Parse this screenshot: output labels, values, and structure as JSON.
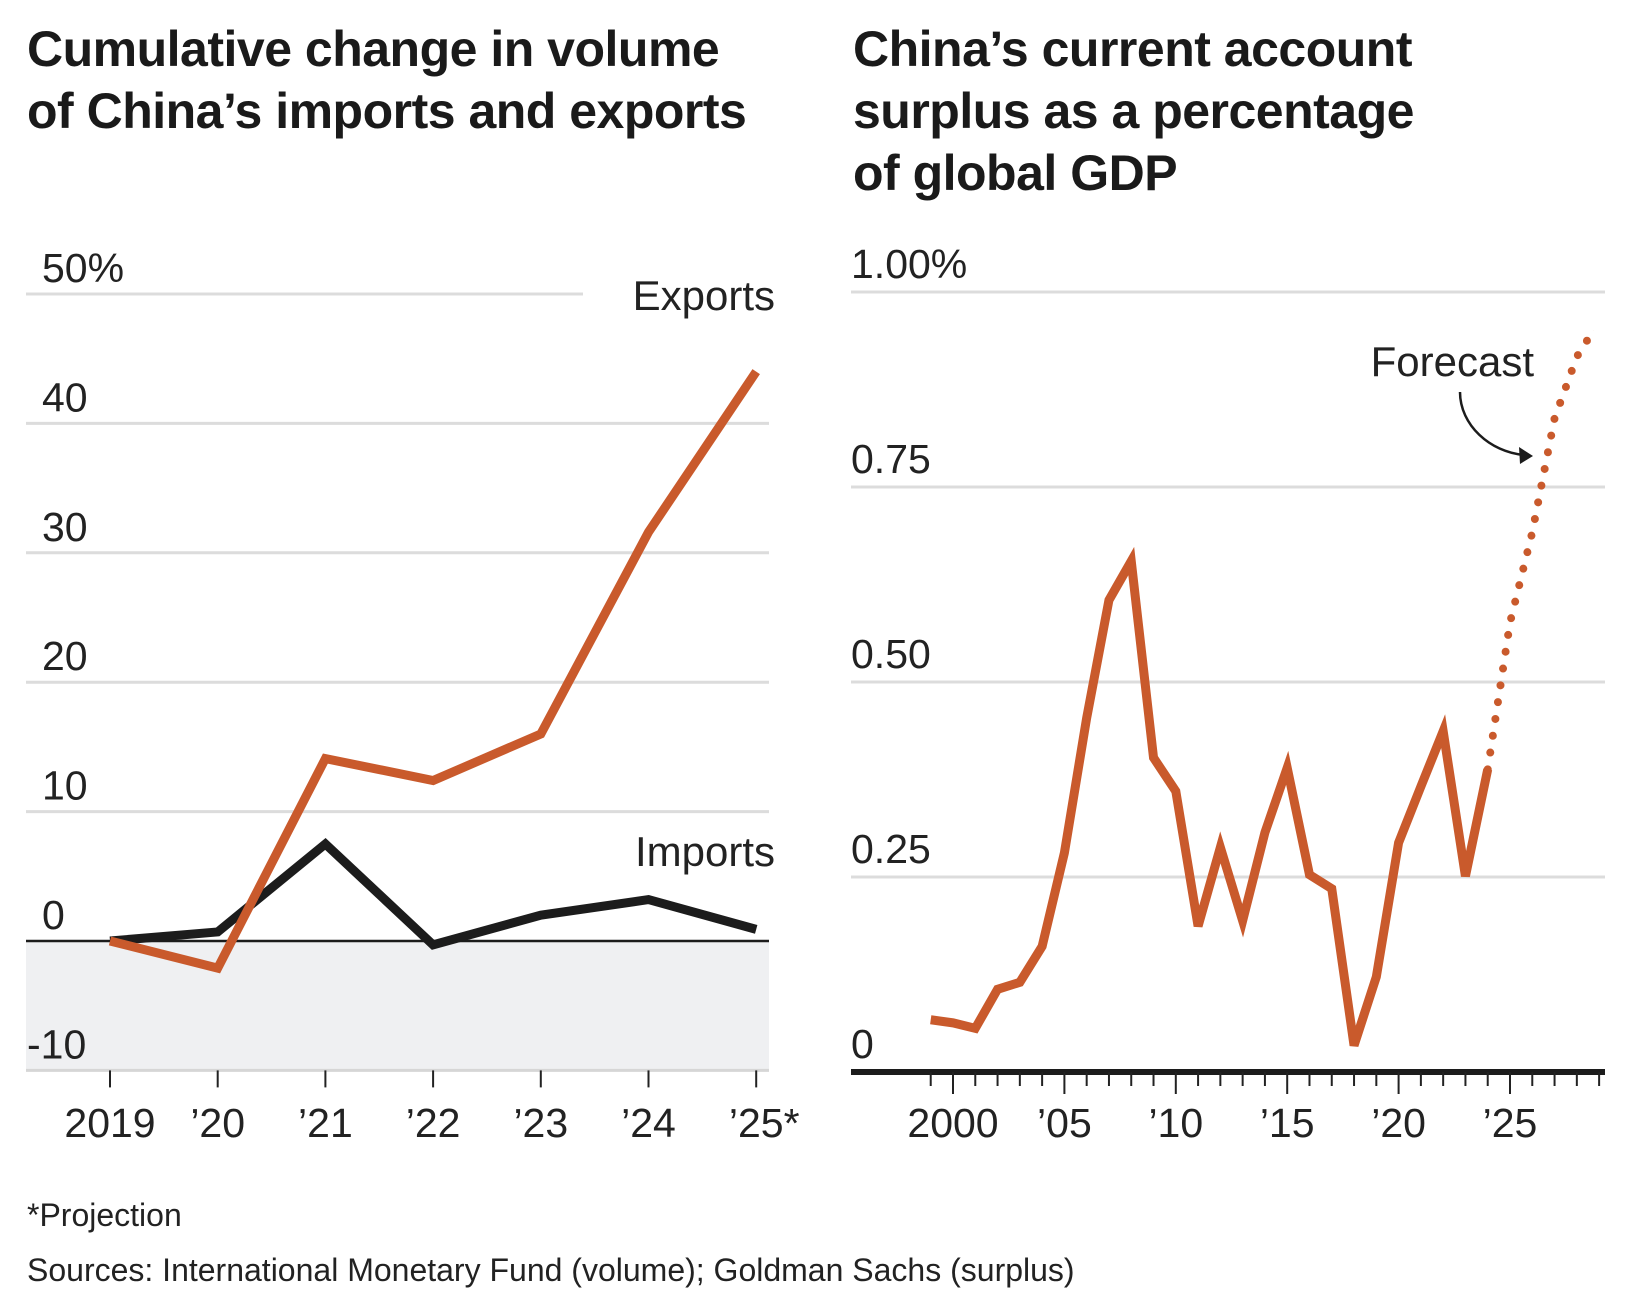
{
  "colors": {
    "exports": "#c95a2c",
    "imports": "#1c1c1c",
    "surplus": "#c95a2c",
    "grid": "#dcdcdc",
    "negative_shade": "#eff0f2"
  },
  "chart_data": [
    {
      "type": "line",
      "title": "Cumulative change in volume of China’s imports and exports",
      "title_lines": [
        "Cumulative change in volume",
        "of China’s imports and exports"
      ],
      "categories": [
        "2019",
        "’20",
        "’21",
        "’22",
        "’23",
        "’24",
        "’25*"
      ],
      "series": [
        {
          "name": "Exports",
          "values": [
            0,
            -2.1,
            14.1,
            12.4,
            16.0,
            31.6,
            44.0
          ]
        },
        {
          "name": "Imports",
          "values": [
            0,
            0.7,
            7.5,
            -0.3,
            2.0,
            3.2,
            0.9
          ]
        }
      ],
      "yticks": [
        "50%",
        "40",
        "30",
        "20",
        "10",
        "0",
        "-10"
      ],
      "ytick_values": [
        50,
        40,
        30,
        20,
        10,
        0,
        -10
      ],
      "ylim": [
        -10,
        50
      ],
      "grid": true,
      "legend": "direct labels"
    },
    {
      "type": "line",
      "title": "China’s current account surplus as a percentage of global GDP",
      "title_lines": [
        "China’s current account",
        "surplus as a percentage",
        "of global GDP"
      ],
      "x": [
        1999,
        2000,
        2001,
        2002,
        2003,
        2004,
        2005,
        2006,
        2007,
        2008,
        2009,
        2010,
        2011,
        2012,
        2013,
        2014,
        2015,
        2016,
        2017,
        2018,
        2019,
        2020,
        2021,
        2022,
        2023,
        2024
      ],
      "values": [
        0.067,
        0.063,
        0.056,
        0.106,
        0.115,
        0.161,
        0.281,
        0.454,
        0.605,
        0.655,
        0.403,
        0.36,
        0.187,
        0.288,
        0.194,
        0.307,
        0.39,
        0.253,
        0.235,
        0.034,
        0.122,
        0.294,
        0.366,
        0.437,
        0.251,
        0.388
      ],
      "forecast": {
        "label": "Forecast",
        "x": [
          2024,
          2025,
          2026,
          2027,
          2028,
          2028.75
        ],
        "values": [
          0.388,
          0.576,
          0.692,
          0.838,
          0.917,
          0.951
        ]
      },
      "xticks": [
        "2000",
        "’05",
        "’10",
        "’15",
        "’20",
        "’25"
      ],
      "xtick_values": [
        2000,
        2005,
        2010,
        2015,
        2020,
        2025
      ],
      "yticks": [
        "1.00%",
        "0.75",
        "0.50",
        "0.25",
        "0"
      ],
      "ytick_values": [
        1.0,
        0.75,
        0.5,
        0.25,
        0
      ],
      "xlim": [
        1999,
        2029
      ],
      "ylim": [
        0,
        1.0
      ],
      "grid": true
    }
  ],
  "footer": {
    "note": "*Projection",
    "sources": "Sources: International Monetary Fund (volume); Goldman Sachs (surplus)"
  }
}
